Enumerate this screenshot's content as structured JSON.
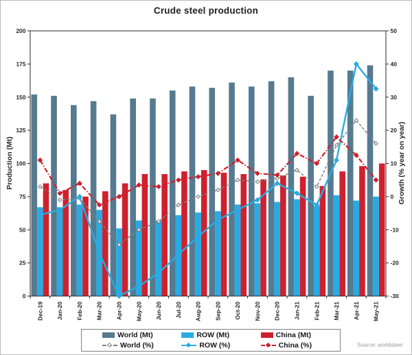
{
  "title": "Crude steel production",
  "source": "Source: worldsteel",
  "legend": {
    "items": [
      {
        "label": "World (Mt)",
        "type": "bar"
      },
      {
        "label": "ROW (Mt)",
        "type": "bar"
      },
      {
        "label": "China (Mt)",
        "type": "bar"
      },
      {
        "label": "World (%)",
        "type": "line"
      },
      {
        "label": "ROW (%)",
        "type": "line"
      },
      {
        "label": "China (%)",
        "type": "line"
      }
    ]
  },
  "chart_data": {
    "type": "bar",
    "subtype": "grouped bars with overlaid growth lines",
    "title": "Crude steel production",
    "categories": [
      "Dec-19",
      "Jan-20",
      "Feb-20",
      "Mar-20",
      "Apr-20",
      "May-20",
      "Jun-20",
      "Jul-20",
      "Aug-20",
      "Sep-20",
      "Oct-20",
      "Nov-20",
      "Dec-20",
      "Jan-21",
      "Feb-21",
      "Mar-21",
      "Apr-21",
      "May-21"
    ],
    "bar_series": [
      {
        "name": "World (Mt)",
        "axis": "left",
        "color": "#567a90",
        "values": [
          152,
          151,
          144,
          147,
          137,
          149,
          149,
          155,
          158,
          157,
          161,
          158,
          162,
          165,
          151,
          170,
          170,
          174
        ]
      },
      {
        "name": "ROW (Mt)",
        "axis": "left",
        "color": "#29abe2",
        "values": [
          67,
          67,
          69,
          65,
          51,
          57,
          57,
          61,
          63,
          64,
          69,
          70,
          71,
          73,
          68,
          76,
          72,
          75
        ]
      },
      {
        "name": "China (Mt)",
        "axis": "left",
        "color": "#cf202e",
        "values": [
          85,
          80,
          75,
          79,
          85,
          92,
          92,
          94,
          95,
          93,
          92,
          88,
          91,
          90,
          83,
          94,
          98,
          100
        ]
      }
    ],
    "line_series": [
      {
        "name": "World (%)",
        "axis": "right",
        "color": "#7f7f7f",
        "dash": "4 2.5",
        "marker": "diamond",
        "marker_fill": "#f2f2f2",
        "values": [
          3,
          -1,
          -0.5,
          -7.5,
          -14.5,
          -10,
          -7.5,
          -2.5,
          0,
          2,
          5,
          4.5,
          5.5,
          8,
          3,
          15.5,
          23,
          16
        ]
      },
      {
        "name": "ROW (%)",
        "axis": "right",
        "color": "#29abe2",
        "dash": "",
        "marker": "diamond",
        "marker_fill": "#29abe2",
        "values": [
          -5.5,
          -4,
          0,
          -17,
          -30,
          -27,
          -23,
          -17.5,
          -12,
          -7,
          -4,
          -1,
          4,
          1,
          -2.5,
          11,
          40,
          32.5
        ]
      },
      {
        "name": "China (%)",
        "axis": "right",
        "color": "#cf202e",
        "dash": "7 2.5 1.5 2.5",
        "marker": "diamond",
        "marker_fill": "#cf202e",
        "values": [
          11,
          1,
          4,
          -2.5,
          0,
          3.5,
          3,
          5,
          6,
          7,
          11,
          7,
          6.5,
          13,
          10,
          18,
          12.5,
          5
        ]
      }
    ],
    "left_axis": {
      "label": "Production (Mt)",
      "min": 0,
      "max": 200,
      "ticks": [
        0,
        25,
        50,
        75,
        100,
        125,
        150,
        175,
        200
      ]
    },
    "right_axis": {
      "label": "Growth (% year on year)",
      "min": -30,
      "max": 50,
      "ticks": [
        -30,
        -20,
        -10,
        0,
        10,
        20,
        30,
        40,
        50
      ]
    },
    "grid": false,
    "legend_position": "bottom",
    "plot_border": true
  }
}
